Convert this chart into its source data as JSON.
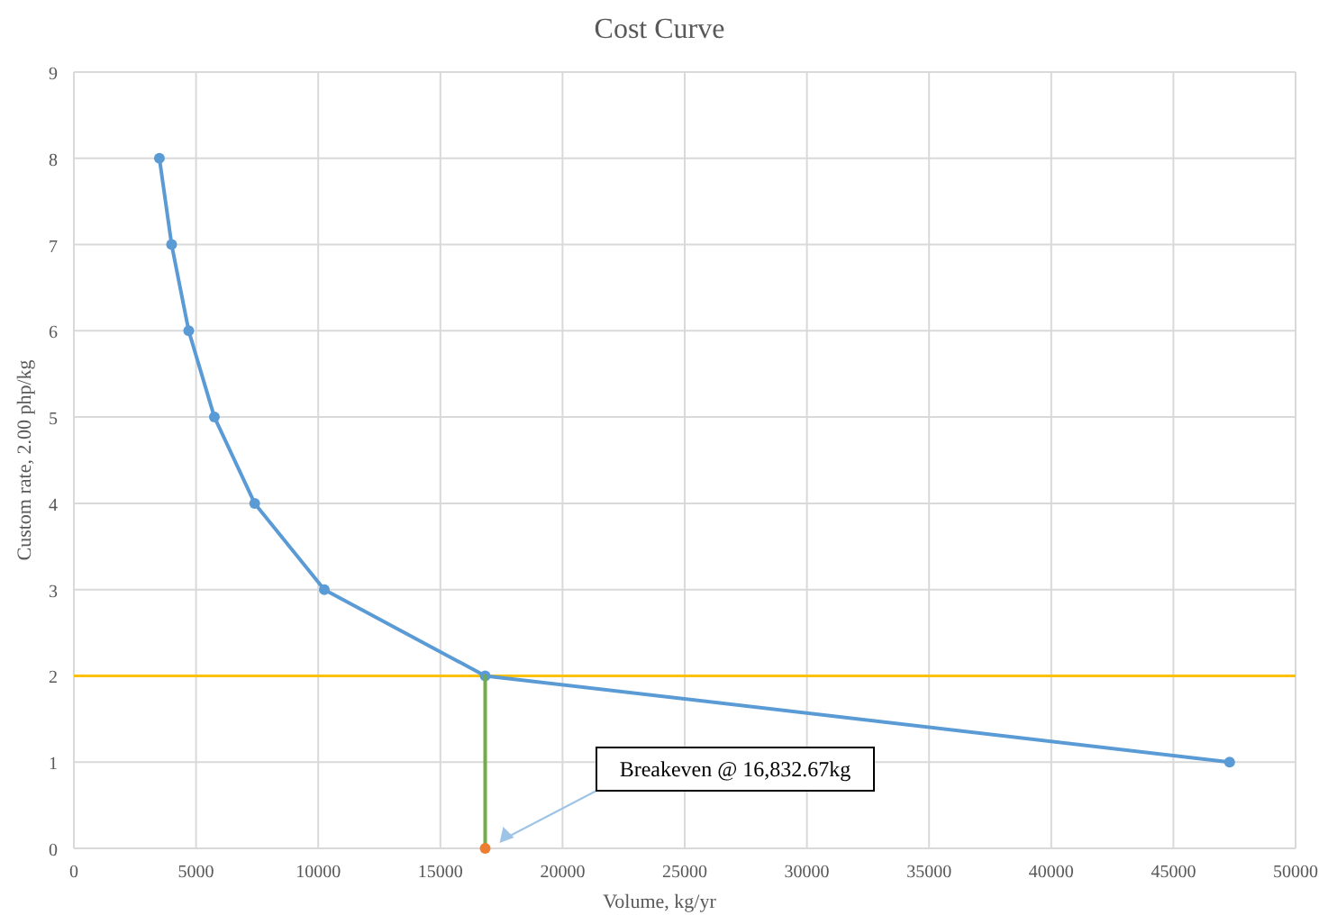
{
  "chart_data": {
    "type": "line",
    "title": "Cost Curve",
    "xlabel": "Volume, kg/yr",
    "ylabel": "Custom rate, 2.00 php/kg",
    "xlim": [
      0,
      50000
    ],
    "xticks": [
      0,
      5000,
      10000,
      15000,
      20000,
      25000,
      30000,
      35000,
      40000,
      45000,
      50000
    ],
    "ylim": [
      0,
      9
    ],
    "yticks": [
      0,
      1,
      2,
      3,
      4,
      5,
      6,
      7,
      8,
      9
    ],
    "grid": true,
    "marker": "circle",
    "line_style": "solid",
    "series": [
      {
        "color": "#5b9bd5",
        "x": [
          3500,
          4000,
          4700,
          5750,
          7400,
          10250,
          16832.67,
          47300
        ],
        "values": [
          8,
          7,
          6,
          5,
          4,
          3,
          2,
          1
        ]
      },
      {
        "type": "line",
        "color": "#70ad47",
        "x": [
          16832.67,
          16832.67
        ],
        "values": [
          0,
          2
        ],
        "marker": "none"
      },
      {
        "type": "scatter",
        "color": "#ed7d31",
        "x": [
          16832.67
        ],
        "values": [
          0
        ]
      }
    ],
    "ref_lines": [
      {
        "axis": "y",
        "value": 2,
        "color": "#ffc000"
      }
    ],
    "annotations": [
      "Breakeven @ 16,832.67kg"
    ]
  }
}
